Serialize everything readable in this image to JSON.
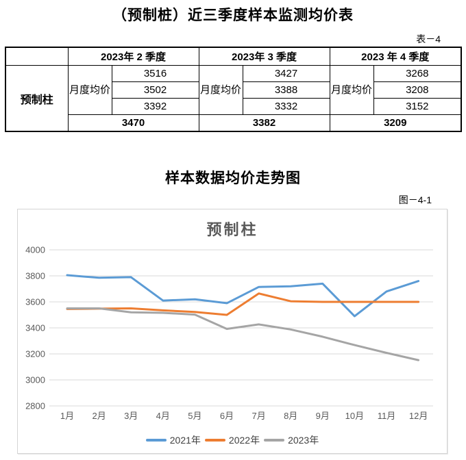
{
  "page": {
    "doc_title": "（预制桩）近三季度样本监测均价表",
    "table_tag": "表－4",
    "section_title": "样本数据均价走势图",
    "figure_tag": "图－4-1"
  },
  "table": {
    "row_label": "预制柱",
    "sub_label": "月度均价",
    "quarters": [
      {
        "label": "2023年 2 季度",
        "values": [
          "3516",
          "3502",
          "3392"
        ],
        "average": "3470"
      },
      {
        "label": "2023年 3 季度",
        "values": [
          "3427",
          "3388",
          "3332"
        ],
        "average": "3382"
      },
      {
        "label": "2023 年 4 季度",
        "values": [
          "3268",
          "3208",
          "3152"
        ],
        "average": "3209"
      }
    ]
  },
  "chart_data": {
    "type": "line",
    "title": "预制柱",
    "x": [
      "1月",
      "2月",
      "3月",
      "4月",
      "5月",
      "6月",
      "7月",
      "8月",
      "9月",
      "10月",
      "11月",
      "12月"
    ],
    "series": [
      {
        "name": "2021年",
        "color": "#5B9BD5",
        "values": [
          3805,
          3785,
          3790,
          3610,
          3620,
          3590,
          3715,
          3720,
          3740,
          3490,
          3680,
          3760
        ]
      },
      {
        "name": "2022年",
        "color": "#ED7D31",
        "values": [
          3545,
          3548,
          3550,
          3535,
          3522,
          3500,
          3665,
          3605,
          3600,
          3600,
          3600,
          3600
        ]
      },
      {
        "name": "2023年",
        "color": "#A5A5A5",
        "values": [
          3550,
          3550,
          3520,
          3516,
          3502,
          3392,
          3427,
          3388,
          3332,
          3268,
          3208,
          3152
        ]
      }
    ],
    "ylim": [
      2800,
      4000
    ],
    "ytick_step": 200,
    "grid": true,
    "gridline_color": "#D9D9D9",
    "tick_label_color": "#595959",
    "legend_position": "bottom",
    "xlabel": "",
    "ylabel": ""
  }
}
